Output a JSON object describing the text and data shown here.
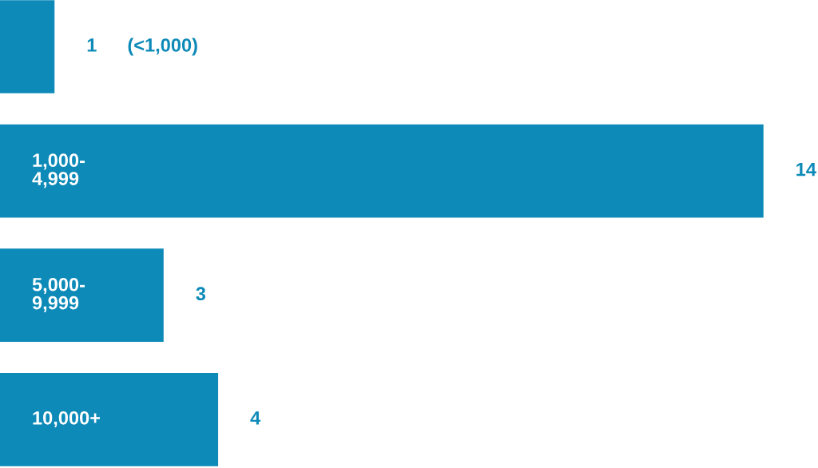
{
  "chart_data": {
    "type": "bar",
    "orientation": "horizontal",
    "categories": [
      "(<1,000)",
      "1,000-\n4,999",
      "5,000-\n9,999",
      "10,000+"
    ],
    "values": [
      1,
      14,
      3,
      4
    ],
    "color": "#0d8ab8",
    "xlim": [
      0,
      15
    ],
    "data_labels": true
  }
}
